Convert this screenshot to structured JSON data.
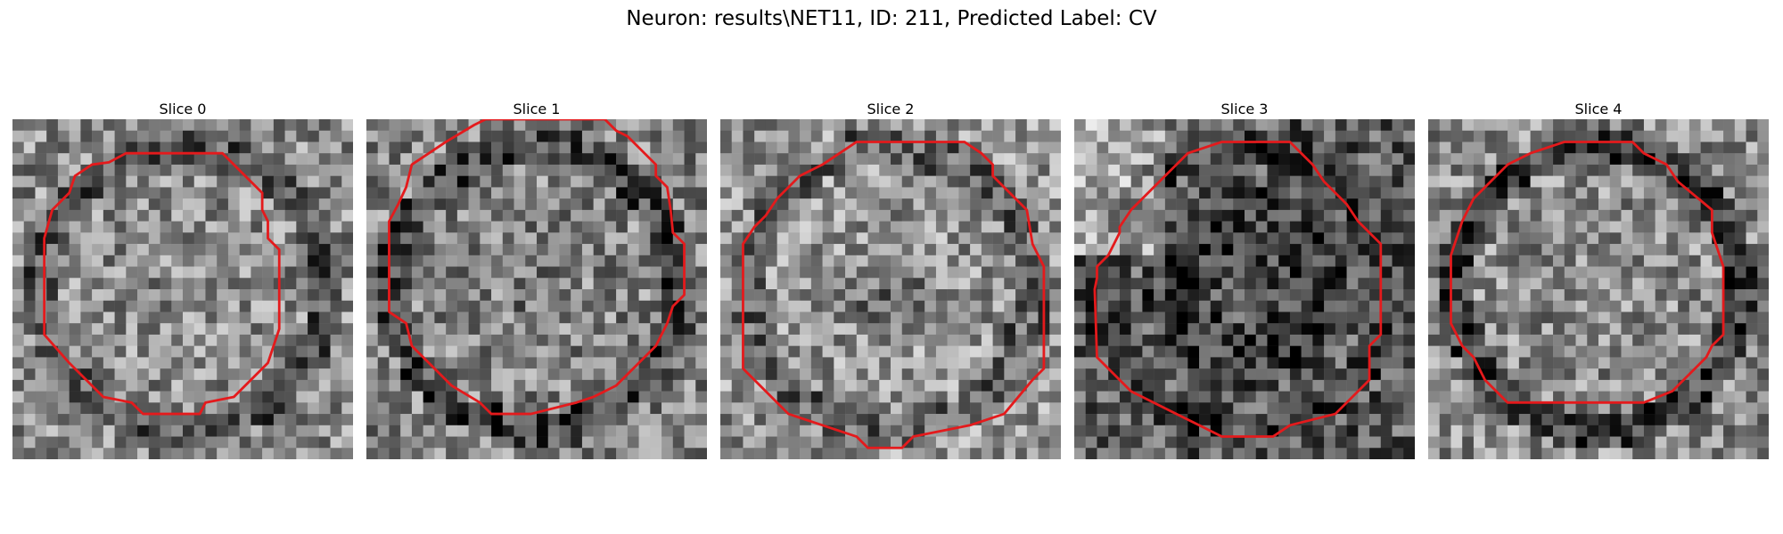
{
  "figure": {
    "title": "Neuron: results\\NET11, ID: 211, Predicted Label: CV"
  },
  "panels": [
    {
      "label": "Slice 0",
      "mean": 0.55,
      "ring": 0.22,
      "center_dark": 0.0,
      "seed": 11
    },
    {
      "label": "Slice 1",
      "mean": 0.52,
      "ring": 0.25,
      "center_dark": 0.05,
      "seed": 23
    },
    {
      "label": "Slice 2",
      "mean": 0.58,
      "ring": 0.2,
      "center_dark": 0.15,
      "seed": 37
    },
    {
      "label": "Slice 3",
      "mean": 0.35,
      "ring": 0.1,
      "center_dark": 0.05,
      "seed": 41
    },
    {
      "label": "Slice 4",
      "mean": 0.55,
      "ring": 0.3,
      "center_dark": 0.0,
      "seed": 59
    }
  ],
  "colors": {
    "contour": "#e41a1c",
    "background": "#ffffff"
  }
}
